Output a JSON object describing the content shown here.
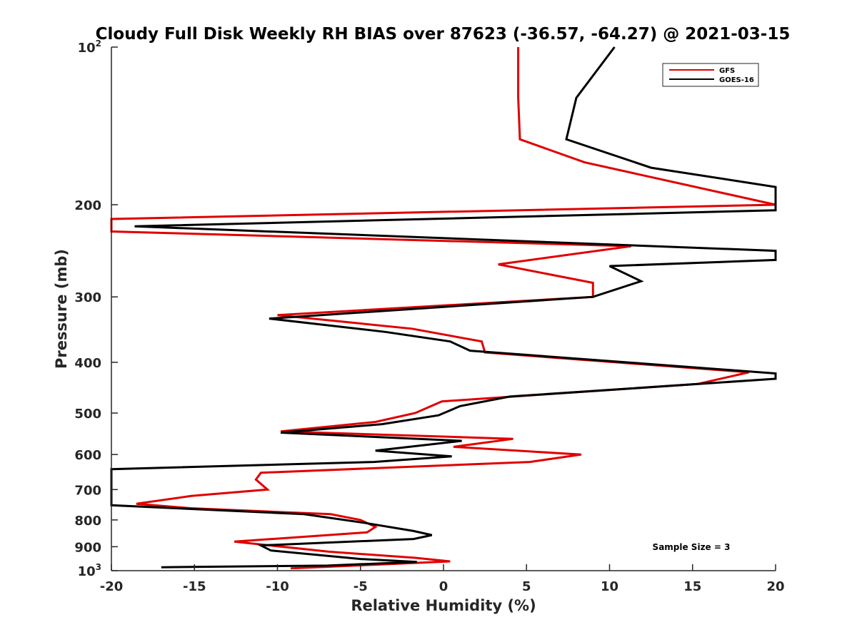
{
  "chart_data": {
    "type": "line",
    "title": "Cloudy Full Disk Weekly RH BIAS over 87623 (-36.57, -64.27) @ 2021-03-15",
    "xlabel": "Relative Humidity (%)",
    "ylabel": "Pressure (mb)",
    "xlim": [
      -20,
      20
    ],
    "ylim": [
      100,
      1000
    ],
    "y_scale": "log",
    "y_reversed": true,
    "x_ticks": [
      "-20",
      "-15",
      "-10",
      "-5",
      "0",
      "5",
      "10",
      "15",
      "20"
    ],
    "y_ticks": [
      {
        "value": 100,
        "base": "10",
        "exp": "2"
      },
      {
        "value": 200,
        "label": "200"
      },
      {
        "value": 300,
        "label": "300"
      },
      {
        "value": 400,
        "label": "400"
      },
      {
        "value": 500,
        "label": "500"
      },
      {
        "value": 600,
        "label": "600"
      },
      {
        "value": 700,
        "label": "700"
      },
      {
        "value": 800,
        "label": "800"
      },
      {
        "value": 900,
        "label": "900"
      },
      {
        "value": 1000,
        "base": "10",
        "exp": "3"
      }
    ],
    "legend_position": "top-right",
    "grid": false,
    "series": [
      {
        "name": "GFS",
        "color": "#e00000",
        "points": [
          [
            4.5,
            100
          ],
          [
            4.5,
            125
          ],
          [
            4.6,
            150
          ],
          [
            8.5,
            166
          ],
          [
            20,
            200
          ],
          [
            -20,
            213
          ],
          [
            -20,
            225
          ],
          [
            11.3,
            240
          ],
          [
            3.3,
            260
          ],
          [
            9.0,
            282
          ],
          [
            9.0,
            300
          ],
          [
            -10.0,
            325
          ],
          [
            -1.9,
            345
          ],
          [
            2.3,
            365
          ],
          [
            2.5,
            383
          ],
          [
            18.4,
            418
          ],
          [
            15.3,
            440
          ],
          [
            -0.1,
            475
          ],
          [
            -1.7,
            500
          ],
          [
            -4.1,
            520
          ],
          [
            -9.8,
            542
          ],
          [
            4.2,
            560
          ],
          [
            0.6,
            580
          ],
          [
            8.3,
            600
          ],
          [
            5.2,
            620
          ],
          [
            -11.0,
            650
          ],
          [
            -11.3,
            670
          ],
          [
            -10.6,
            700
          ],
          [
            -15.2,
            720
          ],
          [
            -18.5,
            745
          ],
          [
            -15.2,
            760
          ],
          [
            -6.8,
            780
          ],
          [
            -5.0,
            800
          ],
          [
            -4.1,
            825
          ],
          [
            -4.6,
            845
          ],
          [
            -12.6,
            880
          ],
          [
            -6.9,
            920
          ],
          [
            -1.7,
            945
          ],
          [
            0.4,
            960
          ],
          [
            -9.2,
            990
          ]
        ]
      },
      {
        "name": "GOES-16",
        "color": "#000000",
        "points": [
          [
            10.3,
            100
          ],
          [
            8.0,
            125
          ],
          [
            7.4,
            150
          ],
          [
            12.5,
            170
          ],
          [
            20,
            185
          ],
          [
            20,
            205
          ],
          [
            -18.6,
            220
          ],
          [
            20,
            245
          ],
          [
            20,
            255
          ],
          [
            10.0,
            262
          ],
          [
            11.9,
            280
          ],
          [
            9.0,
            300
          ],
          [
            -10.5,
            330
          ],
          [
            -3.5,
            350
          ],
          [
            0.4,
            365
          ],
          [
            1.6,
            380
          ],
          [
            20,
            420
          ],
          [
            20,
            430
          ],
          [
            4.0,
            465
          ],
          [
            1.0,
            485
          ],
          [
            -0.3,
            505
          ],
          [
            -3.7,
            525
          ],
          [
            -9.8,
            545
          ],
          [
            1.1,
            565
          ],
          [
            -4.1,
            590
          ],
          [
            0.5,
            605
          ],
          [
            -4.2,
            620
          ],
          [
            -20,
            640
          ],
          [
            -20,
            750
          ],
          [
            -8.4,
            780
          ],
          [
            -4.8,
            810
          ],
          [
            -1.8,
            840
          ],
          [
            -0.7,
            855
          ],
          [
            -1.8,
            870
          ],
          [
            -11.0,
            895
          ],
          [
            -10.4,
            915
          ],
          [
            -5.0,
            950
          ],
          [
            -1.6,
            962
          ],
          [
            -7.0,
            978
          ],
          [
            -17.0,
            985
          ]
        ]
      }
    ],
    "annotation": "Sample Size = 3"
  }
}
